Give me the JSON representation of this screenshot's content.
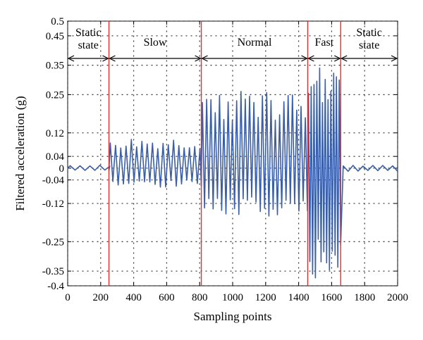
{
  "chart_data": {
    "type": "line",
    "title": "",
    "xlabel": "Sampling points",
    "ylabel": "Filtered acceleration (g)",
    "xlim": [
      0,
      2000
    ],
    "ylim": [
      -0.4,
      0.5
    ],
    "xticks": [
      0,
      200,
      400,
      600,
      800,
      1000,
      1200,
      1400,
      1600,
      1800,
      2000
    ],
    "yticks": [
      -0.4,
      -0.35,
      -0.25,
      -0.12,
      -0.04,
      0,
      0.04,
      0.12,
      0.25,
      0.35,
      0.45,
      0.5
    ],
    "grid": true,
    "line_color": "#3a5ea8",
    "boundary_color": "#e03030",
    "boundaries": [
      250,
      810,
      1455,
      1655
    ],
    "phases": [
      {
        "label_lines": [
          "Static",
          "state"
        ],
        "start": 0,
        "end": 250
      },
      {
        "label_lines": [
          "Slow"
        ],
        "start": 250,
        "end": 810
      },
      {
        "label_lines": [
          "Normal"
        ],
        "start": 810,
        "end": 1455
      },
      {
        "label_lines": [
          "Fast"
        ],
        "start": 1455,
        "end": 1655
      },
      {
        "label_lines": [
          "Static",
          "state"
        ],
        "start": 1655,
        "end": 2000
      }
    ],
    "series": [
      {
        "segments": [
          {
            "start": 0,
            "end": 250,
            "period": 60,
            "peak": 0.01,
            "trough": -0.01
          },
          {
            "start": 250,
            "end": 810,
            "period": 32,
            "peak": 0.09,
            "trough": -0.06
          },
          {
            "start": 810,
            "end": 1455,
            "period": 26,
            "peak": 0.24,
            "trough": -0.15
          },
          {
            "start": 1455,
            "end": 1655,
            "period": 17,
            "peak": 0.34,
            "trough": -0.35
          },
          {
            "start": 1655,
            "end": 2000,
            "period": 60,
            "peak": 0.01,
            "trough": -0.01
          }
        ]
      }
    ]
  }
}
